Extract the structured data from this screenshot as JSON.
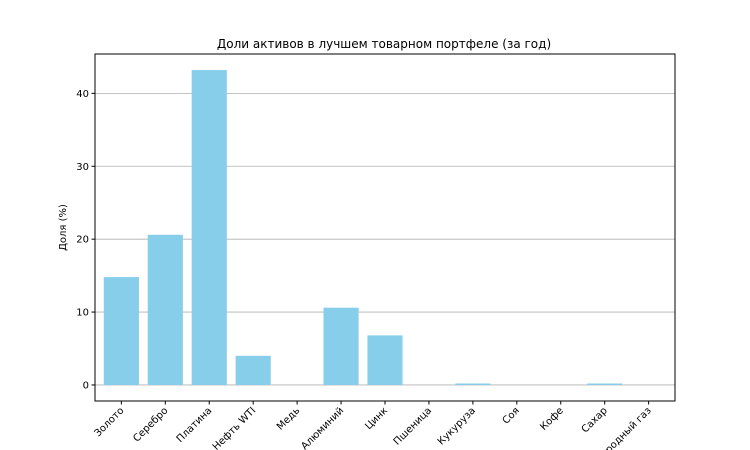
{
  "chart_data": {
    "type": "bar",
    "title": "Доли активов в лучшем товарном портфеле (за год)",
    "xlabel": "",
    "ylabel": "Доля (%)",
    "categories": [
      "Золото",
      "Серебро",
      "Платина",
      "Нефть WTI",
      "Медь",
      "Алюминий",
      "Цинк",
      "Пшеница",
      "Кукуруза",
      "Соя",
      "Кофе",
      "Сахар",
      "Природный газ"
    ],
    "values": [
      14.8,
      20.6,
      43.2,
      4.0,
      0.0,
      10.6,
      6.8,
      0.0,
      0.2,
      0.0,
      0.0,
      0.2,
      0.0
    ],
    "ylim": [
      -2.2,
      45.4
    ],
    "yticks": [
      0,
      10,
      20,
      30,
      40
    ],
    "grid": "y",
    "bar_color": "#87ceeb",
    "legend": null
  }
}
